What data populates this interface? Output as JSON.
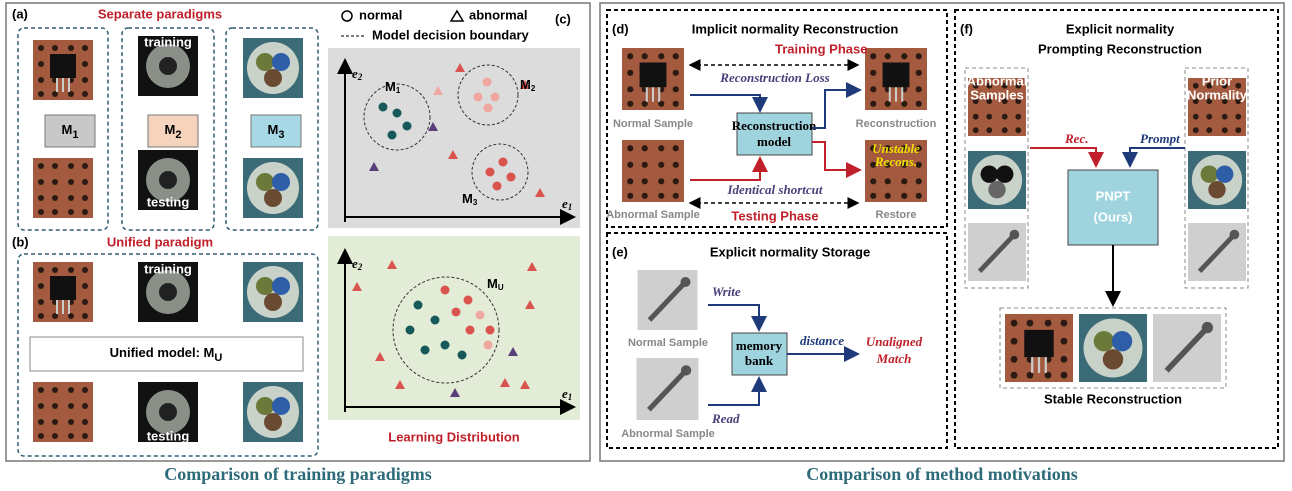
{
  "left": {
    "caption": "Comparison of training paradigms",
    "a": {
      "label": "(a)",
      "title": "Separate paradigms",
      "training": "training",
      "testing": "testing",
      "models": [
        {
          "main": "M",
          "sub": "1"
        },
        {
          "main": "M",
          "sub": "2"
        },
        {
          "main": "M",
          "sub": "3"
        }
      ]
    },
    "b": {
      "label": "(b)",
      "title": "Unified paradigm",
      "training": "training",
      "testing": "testing",
      "model": {
        "main": "Unified model: M",
        "sub": "U"
      }
    },
    "c": {
      "label": "(c)",
      "legend": {
        "normal": "normal",
        "abnormal": "abnormal",
        "boundary": "Model decision boundary"
      },
      "axis_y": {
        "main": "e",
        "sub": "2"
      },
      "axis_x": {
        "main": "e",
        "sub": "1"
      },
      "clusters": [
        {
          "main": "M",
          "sub": "1"
        },
        {
          "main": "M",
          "sub": "2"
        },
        {
          "main": "M",
          "sub": "3"
        }
      ],
      "unified": {
        "main": "M",
        "sub": "U"
      },
      "footer": "Learning Distribution"
    }
  },
  "right": {
    "caption": "Comparison of method motivations",
    "d": {
      "label": "(d)",
      "title": "Implicit normality Reconstruction",
      "training_phase": "Training Phase",
      "loss": "Reconstruction Loss",
      "normal_sample": "Normal Sample",
      "model": [
        "Reconstruction",
        "model"
      ],
      "reconstruction": "Reconstruction",
      "unstable": [
        "Unstable",
        "Recons."
      ],
      "abnormal_sample": "Abnormal Sample",
      "shortcut": "Identical shortcut",
      "testing_phase": "Testing Phase",
      "restore": "Restore"
    },
    "e": {
      "label": "(e)",
      "title": "Explicit normality Storage",
      "write": "Write",
      "normal_sample": "Normal Sample",
      "bank": [
        "memory",
        "bank"
      ],
      "distance": "distance",
      "unaligned": [
        "Unaligned",
        "Match"
      ],
      "abnormal_sample": "Abnormal Sample",
      "read": "Read"
    },
    "f": {
      "label": "(f)",
      "title": [
        "Explicit normality",
        "Prompting Reconstruction"
      ],
      "abnormal_samples": [
        "Abnormal",
        "Samples"
      ],
      "prior": [
        "Prior",
        "Normality"
      ],
      "rec": "Rec.",
      "prompt": "Prompt",
      "model": [
        "PNPT",
        "(Ours)"
      ],
      "stable": "Stable Reconstruction"
    }
  }
}
